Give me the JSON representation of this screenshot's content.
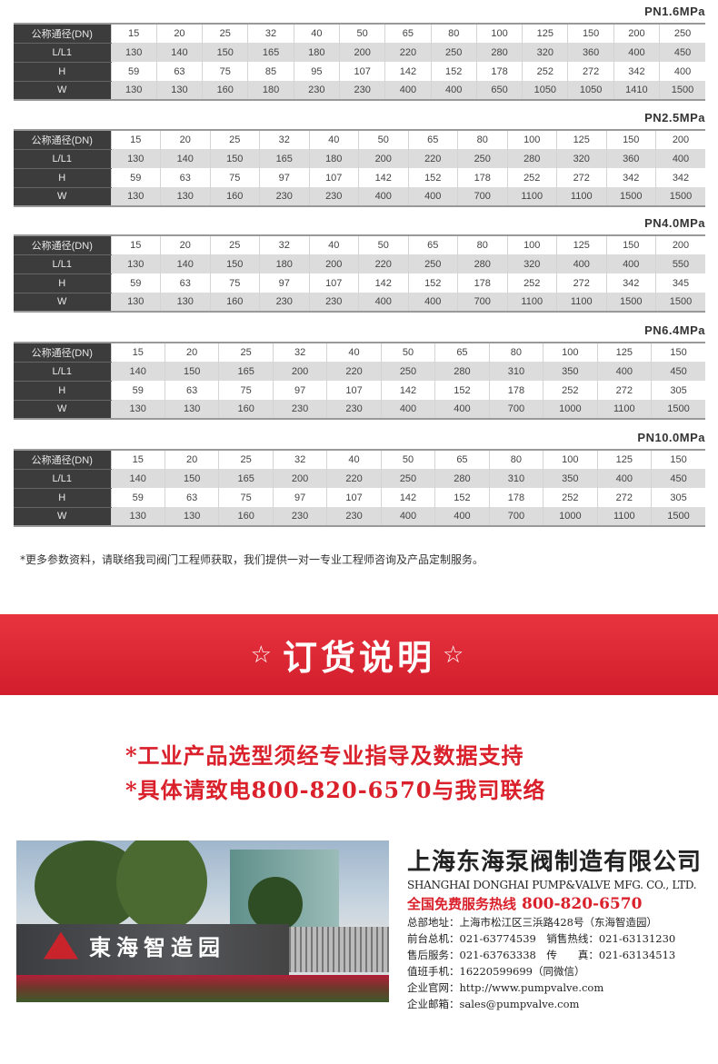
{
  "tables": [
    {
      "title": "PN1.6MPa",
      "rows": [
        {
          "label": "公称通径(DN)",
          "values": [
            "15",
            "20",
            "25",
            "32",
            "40",
            "50",
            "65",
            "80",
            "100",
            "125",
            "150",
            "200",
            "250"
          ]
        },
        {
          "label": "L/L1",
          "values": [
            "130",
            "140",
            "150",
            "165",
            "180",
            "200",
            "220",
            "250",
            "280",
            "320",
            "360",
            "400",
            "450"
          ]
        },
        {
          "label": "H",
          "values": [
            "59",
            "63",
            "75",
            "85",
            "95",
            "107",
            "142",
            "152",
            "178",
            "252",
            "272",
            "342",
            "400"
          ]
        },
        {
          "label": "W",
          "values": [
            "130",
            "130",
            "160",
            "180",
            "230",
            "230",
            "400",
            "400",
            "650",
            "1050",
            "1050",
            "1410",
            "1500"
          ]
        }
      ]
    },
    {
      "title": "PN2.5MPa",
      "rows": [
        {
          "label": "公称通径(DN)",
          "values": [
            "15",
            "20",
            "25",
            "32",
            "40",
            "50",
            "65",
            "80",
            "100",
            "125",
            "150",
            "200"
          ]
        },
        {
          "label": "L/L1",
          "values": [
            "130",
            "140",
            "150",
            "165",
            "180",
            "200",
            "220",
            "250",
            "280",
            "320",
            "360",
            "400"
          ]
        },
        {
          "label": "H",
          "values": [
            "59",
            "63",
            "75",
            "97",
            "107",
            "142",
            "152",
            "178",
            "252",
            "272",
            "342",
            "342"
          ]
        },
        {
          "label": "W",
          "values": [
            "130",
            "130",
            "160",
            "230",
            "230",
            "400",
            "400",
            "700",
            "1100",
            "1100",
            "1500",
            "1500"
          ]
        }
      ]
    },
    {
      "title": "PN4.0MPa",
      "rows": [
        {
          "label": "公称通径(DN)",
          "values": [
            "15",
            "20",
            "25",
            "32",
            "40",
            "50",
            "65",
            "80",
            "100",
            "125",
            "150",
            "200"
          ]
        },
        {
          "label": "L/L1",
          "values": [
            "130",
            "140",
            "150",
            "180",
            "200",
            "220",
            "250",
            "280",
            "320",
            "400",
            "400",
            "550"
          ]
        },
        {
          "label": "H",
          "values": [
            "59",
            "63",
            "75",
            "97",
            "107",
            "142",
            "152",
            "178",
            "252",
            "272",
            "342",
            "345"
          ]
        },
        {
          "label": "W",
          "values": [
            "130",
            "130",
            "160",
            "230",
            "230",
            "400",
            "400",
            "700",
            "1100",
            "1100",
            "1500",
            "1500"
          ]
        }
      ]
    },
    {
      "title": "PN6.4MPa",
      "rows": [
        {
          "label": "公称通径(DN)",
          "values": [
            "15",
            "20",
            "25",
            "32",
            "40",
            "50",
            "65",
            "80",
            "100",
            "125",
            "150"
          ]
        },
        {
          "label": "L/L1",
          "values": [
            "140",
            "150",
            "165",
            "200",
            "220",
            "250",
            "280",
            "310",
            "350",
            "400",
            "450"
          ]
        },
        {
          "label": "H",
          "values": [
            "59",
            "63",
            "75",
            "97",
            "107",
            "142",
            "152",
            "178",
            "252",
            "272",
            "305"
          ]
        },
        {
          "label": "W",
          "values": [
            "130",
            "130",
            "160",
            "230",
            "230",
            "400",
            "400",
            "700",
            "1000",
            "1100",
            "1500"
          ]
        }
      ]
    },
    {
      "title": "PN10.0MPa",
      "rows": [
        {
          "label": "公称通径(DN)",
          "values": [
            "15",
            "20",
            "25",
            "32",
            "40",
            "50",
            "65",
            "80",
            "100",
            "125",
            "150"
          ]
        },
        {
          "label": "L/L1",
          "values": [
            "140",
            "150",
            "165",
            "200",
            "220",
            "250",
            "280",
            "310",
            "350",
            "400",
            "450"
          ]
        },
        {
          "label": "H",
          "values": [
            "59",
            "63",
            "75",
            "97",
            "107",
            "142",
            "152",
            "178",
            "252",
            "272",
            "305"
          ]
        },
        {
          "label": "W",
          "values": [
            "130",
            "130",
            "160",
            "230",
            "230",
            "400",
            "400",
            "700",
            "1000",
            "1100",
            "1500"
          ]
        }
      ]
    }
  ],
  "note": "*更多参数资料，请联络我司阀门工程师获取，我们提供一对一专业工程师咨询及产品定制服务。",
  "banner": {
    "star": "☆",
    "title": "订货说明"
  },
  "order_lines": [
    "*工业产品选型须经专业指导及数据支持",
    "*具体请致电800-820-6570与我司联络"
  ],
  "photo": {
    "sign_text": "東海智造园"
  },
  "company": {
    "name_cn": "上海东海泵阀制造有限公司",
    "name_en": "SHANGHAI DONGHAI PUMP&VALVE MFG. CO., LTD.",
    "hotline_label": "全国免费服务热线",
    "hotline": "800-820-6570",
    "lines": [
      "总部地址：上海市松江区三浜路428号（东海智造园）",
      "前台总机：021-63774539　销售热线：021-63131230",
      "售后服务：021-63763338　传　　真：021-63134513",
      "值班手机：16220599699（同微信）",
      "企业官网：http://www.pumpvalve.com",
      "企业邮箱：sales@pumpvalve.com"
    ]
  },
  "colors": {
    "accent": "#d9202b",
    "label_bg": "#3c3c3c",
    "alt_row": "#dcdcdc"
  }
}
